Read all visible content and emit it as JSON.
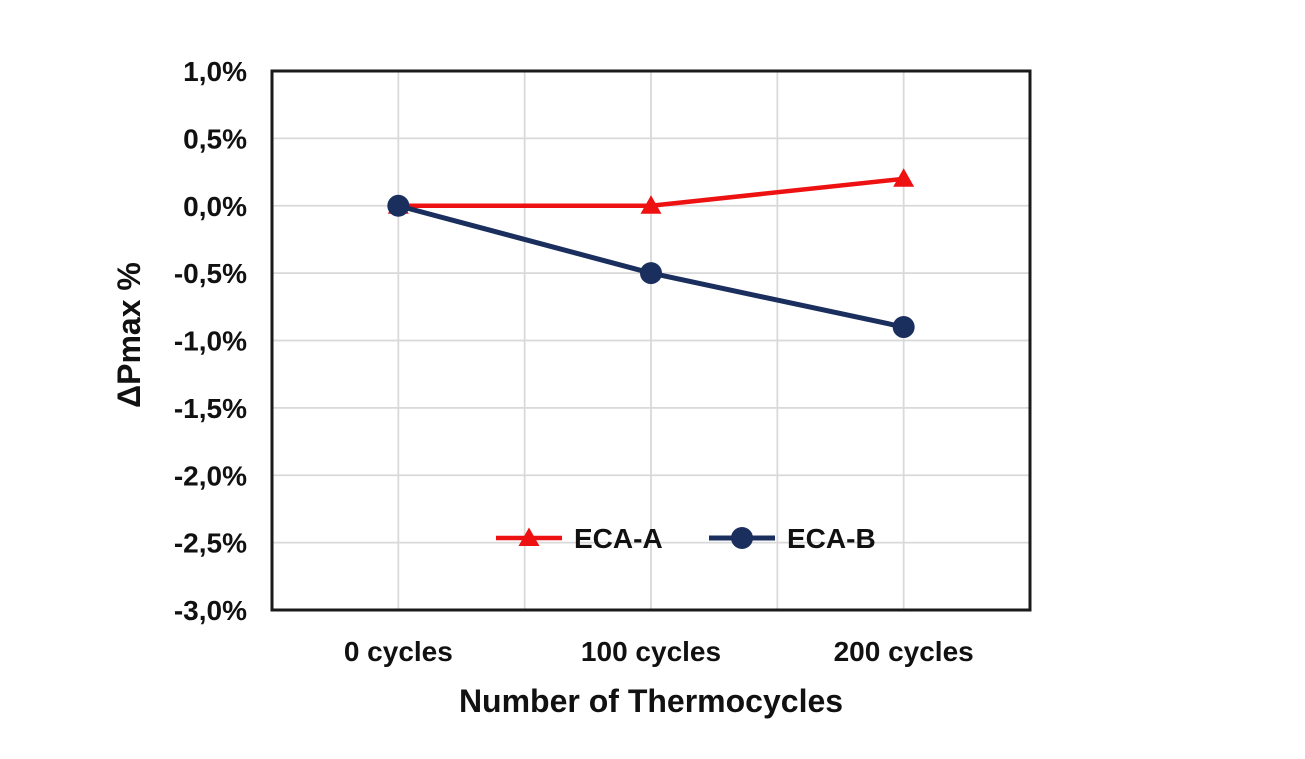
{
  "chart_data": {
    "type": "line",
    "title": "",
    "xlabel": "Number of Thermocycles",
    "ylabel": "ΔPmax %",
    "categories": [
      "0 cycles",
      "100 cycles",
      "200 cycles"
    ],
    "series": [
      {
        "name": "ECA-A",
        "color": "#EE1111",
        "marker": "triangle",
        "line_width": 4.5,
        "values": [
          0.0,
          0.0,
          0.2
        ]
      },
      {
        "name": "ECA-B",
        "color": "#1B2F5E",
        "marker": "circle",
        "line_width": 5,
        "values": [
          0.0,
          -0.5,
          -0.9
        ]
      }
    ],
    "y_axis": {
      "min": -3.0,
      "max": 1.0,
      "step": 0.5,
      "decimal_separator": ",",
      "tick_labels": [
        "1,0%",
        "0,5%",
        "0,0%",
        "-0,5%",
        "-1,0%",
        "-1,5%",
        "-2,0%",
        "-2,5%",
        "-3,0%"
      ]
    },
    "x_axis": {
      "tick_labels": [
        "0 cycles",
        "100 cycles",
        "200 cycles"
      ]
    },
    "grid": {
      "show": true,
      "color": "#D9D9D9",
      "vertical_divisions": 6
    },
    "legend": {
      "position": "inside-bottom-center",
      "items": [
        "ECA-A",
        "ECA-B"
      ]
    },
    "styles": {
      "axis_border_color": "#1A1A1A",
      "text_color": "#111111",
      "background": "#FFFFFF"
    }
  }
}
